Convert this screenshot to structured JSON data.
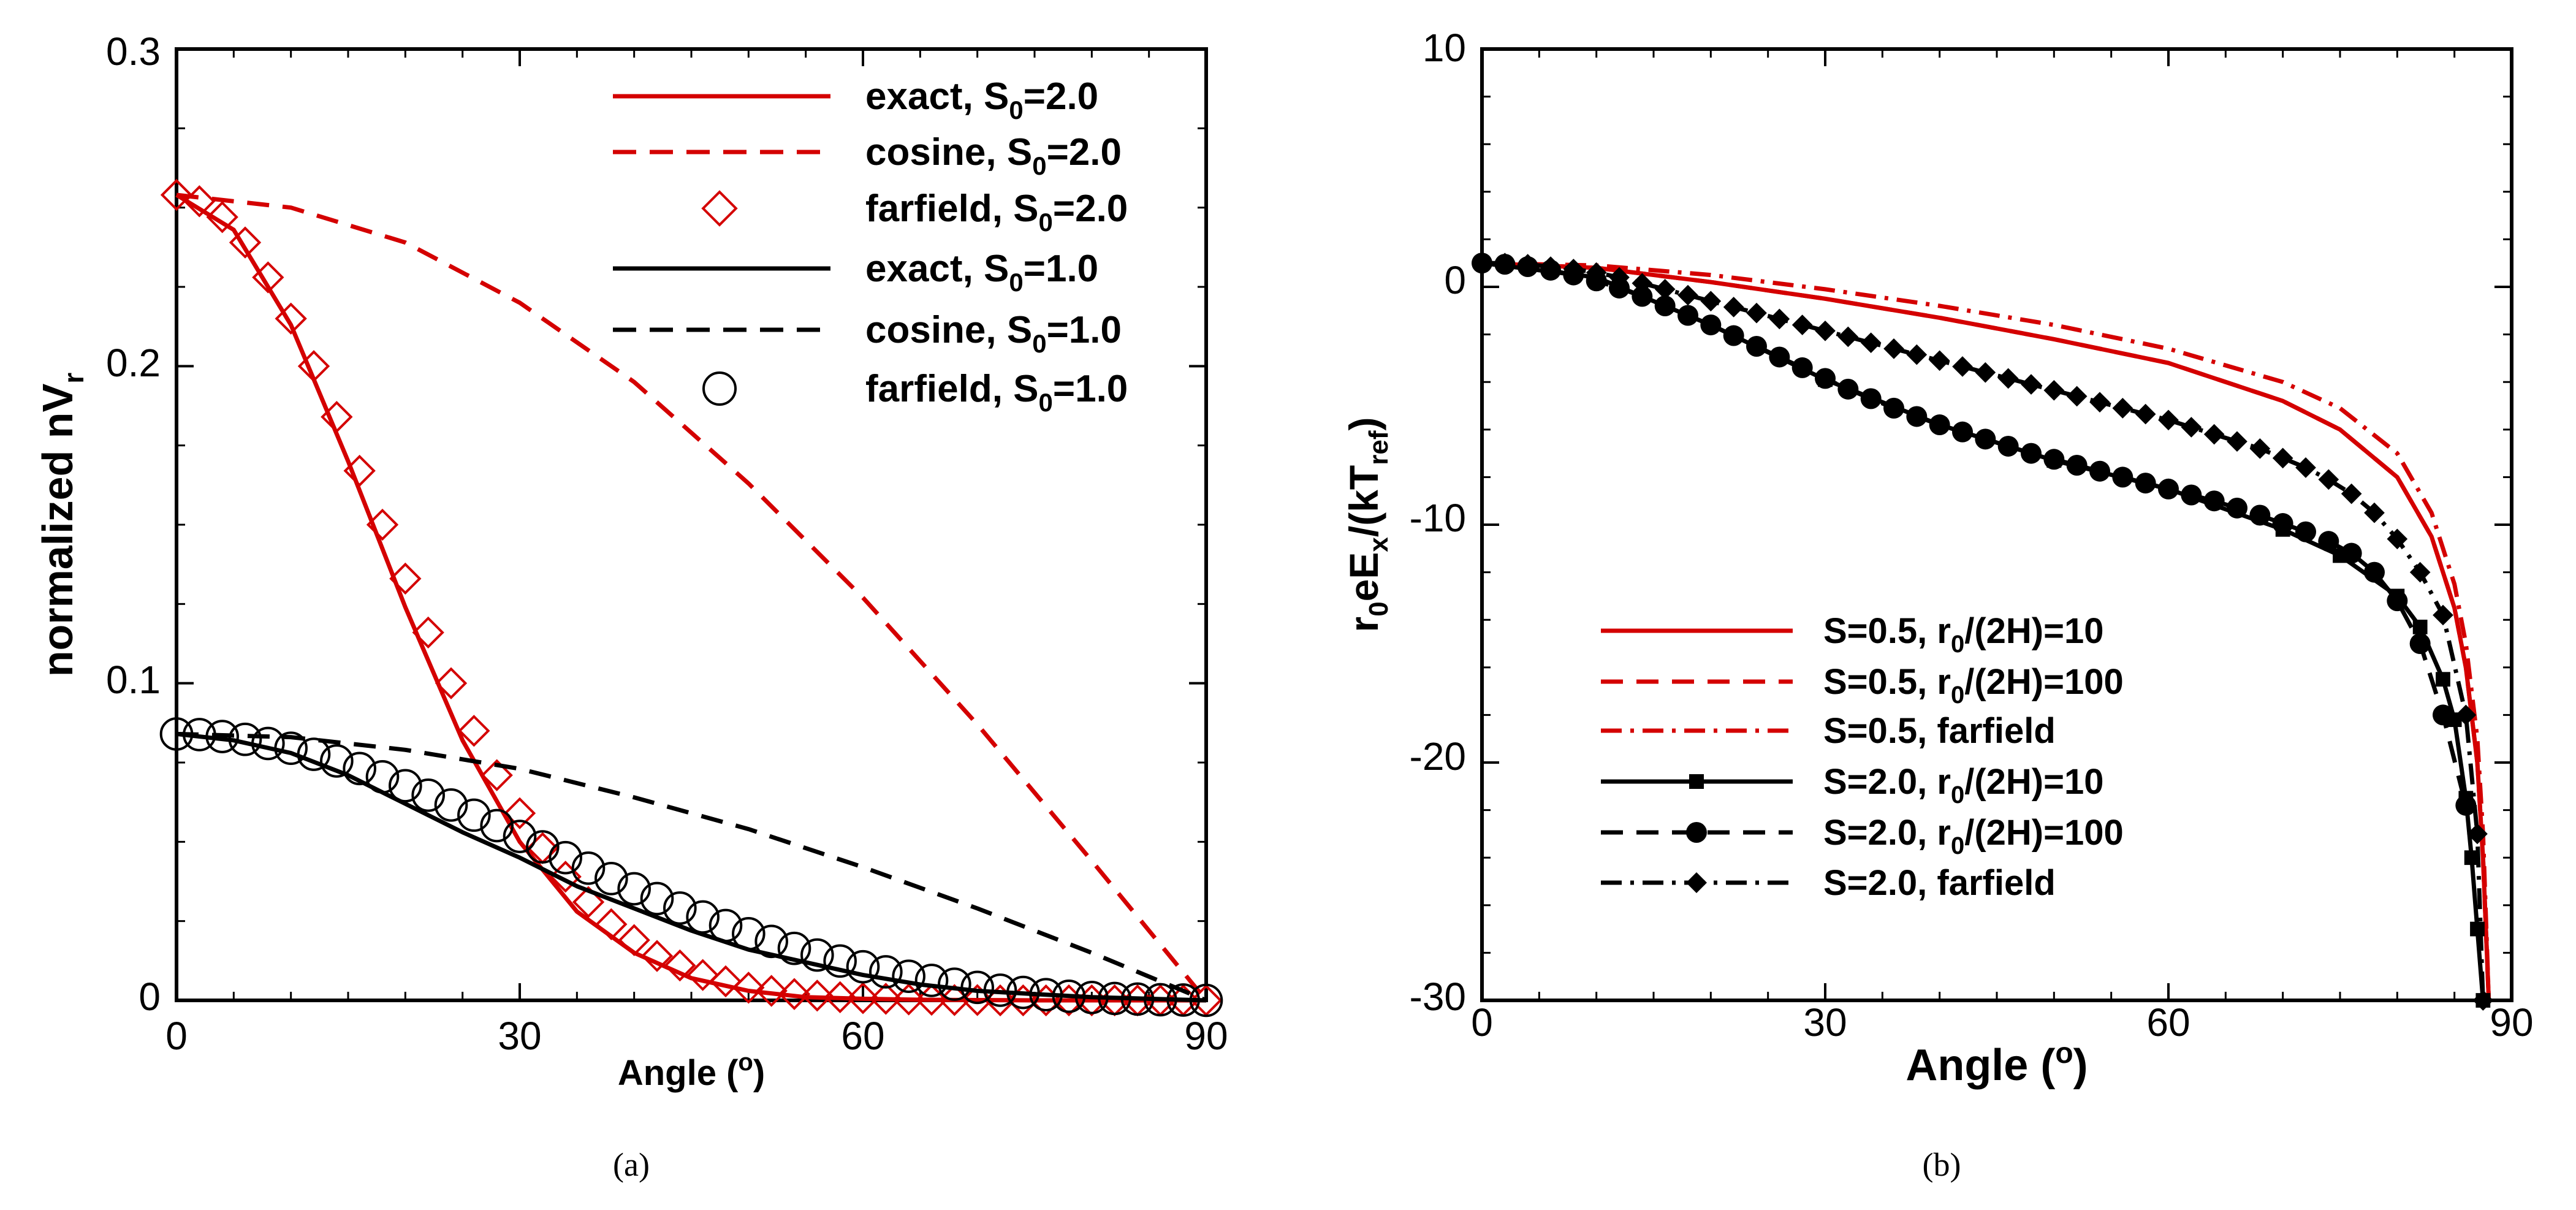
{
  "colors": {
    "red": "#d40000",
    "black": "#000000"
  },
  "chart_data": [
    {
      "id": "a",
      "type": "line",
      "caption": "(a)",
      "xlabel": "Angle (",
      "xlabel_sup": "o",
      "xlabel_end": ")",
      "ylabel": "normalized  nV",
      "ylabel_sub": "r",
      "xlim": [
        0,
        90
      ],
      "ylim": [
        0,
        0.3
      ],
      "xticks": [
        0,
        30,
        60,
        90
      ],
      "xtick_labels": [
        "0",
        "30",
        "60",
        "90"
      ],
      "yticks": [
        0,
        0.1,
        0.2,
        0.3
      ],
      "ytick_labels": [
        "0",
        "0.1",
        "0.2",
        "0.3"
      ],
      "legend_position": "top-right",
      "series": [
        {
          "name": "exact, S",
          "sub": "0",
          "suffix": "=2.0",
          "color": "#d40000",
          "dash": "solid",
          "marker": "none",
          "x": [
            0,
            5,
            10,
            15,
            20,
            25,
            30,
            35,
            40,
            45,
            50,
            55,
            60,
            65,
            70,
            75,
            80,
            85,
            90
          ],
          "y": [
            0.254,
            0.243,
            0.213,
            0.17,
            0.124,
            0.082,
            0.05,
            0.028,
            0.015,
            0.007,
            0.003,
            0.001,
            0.0005,
            0.0002,
            0.0001,
            0.0,
            0.0,
            0.0,
            0.0
          ]
        },
        {
          "name": "cosine, S",
          "sub": "0",
          "suffix": "=2.0",
          "color": "#d40000",
          "dash": "dashed",
          "marker": "none",
          "x": [
            0,
            10,
            20,
            30,
            40,
            50,
            60,
            70,
            80,
            90
          ],
          "y": [
            0.254,
            0.25,
            0.239,
            0.22,
            0.195,
            0.163,
            0.127,
            0.087,
            0.044,
            0.0
          ]
        },
        {
          "name": "farfield, S",
          "sub": "0",
          "suffix": "=2.0",
          "color": "#d40000",
          "dash": "none",
          "marker": "diamond",
          "x": [
            0,
            2,
            4,
            6,
            8,
            10,
            12,
            14,
            16,
            18,
            20,
            22,
            24,
            26,
            28,
            30,
            32,
            34,
            36,
            38,
            40,
            42,
            44,
            46,
            48,
            50,
            52,
            54,
            56,
            58,
            60,
            62,
            64,
            66,
            68,
            70,
            72,
            74,
            76,
            78,
            80,
            82,
            84,
            86,
            88,
            90
          ],
          "y": [
            0.254,
            0.252,
            0.247,
            0.239,
            0.228,
            0.215,
            0.2,
            0.184,
            0.167,
            0.15,
            0.133,
            0.116,
            0.1,
            0.085,
            0.071,
            0.059,
            0.048,
            0.039,
            0.031,
            0.024,
            0.019,
            0.014,
            0.011,
            0.008,
            0.006,
            0.004,
            0.003,
            0.002,
            0.0015,
            0.001,
            0.0007,
            0.0005,
            0.0003,
            0.0002,
            0.0001,
            0.0001,
            0.0,
            0.0,
            0.0,
            0.0,
            0.0,
            0.0,
            0.0,
            0.0,
            0.0,
            0.0
          ]
        },
        {
          "name": "exact, S",
          "sub": "0",
          "suffix": "=1.0",
          "color": "#000000",
          "dash": "solid",
          "marker": "none",
          "x": [
            0,
            5,
            10,
            15,
            20,
            25,
            30,
            35,
            40,
            45,
            50,
            55,
            60,
            65,
            70,
            75,
            80,
            85,
            90
          ],
          "y": [
            0.084,
            0.082,
            0.078,
            0.071,
            0.062,
            0.053,
            0.045,
            0.036,
            0.029,
            0.022,
            0.016,
            0.012,
            0.008,
            0.005,
            0.003,
            0.002,
            0.001,
            0.0005,
            0.0
          ]
        },
        {
          "name": "cosine, S",
          "sub": "0",
          "suffix": "=1.0",
          "color": "#000000",
          "dash": "dashed",
          "marker": "none",
          "x": [
            0,
            10,
            20,
            30,
            40,
            50,
            60,
            70,
            80,
            90
          ],
          "y": [
            0.084,
            0.083,
            0.079,
            0.073,
            0.064,
            0.054,
            0.042,
            0.029,
            0.015,
            0.0
          ]
        },
        {
          "name": "farfield, S",
          "sub": "0",
          "suffix": "=1.0",
          "color": "#000000",
          "dash": "none",
          "marker": "circle",
          "x": [
            0,
            2,
            4,
            6,
            8,
            10,
            12,
            14,
            16,
            18,
            20,
            22,
            24,
            26,
            28,
            30,
            32,
            34,
            36,
            38,
            40,
            42,
            44,
            46,
            48,
            50,
            52,
            54,
            56,
            58,
            60,
            62,
            64,
            66,
            68,
            70,
            72,
            74,
            76,
            78,
            80,
            82,
            84,
            86,
            88,
            90
          ],
          "y": [
            0.084,
            0.0838,
            0.0832,
            0.0823,
            0.081,
            0.0795,
            0.0776,
            0.0755,
            0.0731,
            0.0705,
            0.0677,
            0.0647,
            0.0616,
            0.0584,
            0.0551,
            0.0517,
            0.0484,
            0.045,
            0.0417,
            0.0384,
            0.0352,
            0.0321,
            0.0291,
            0.0263,
            0.0236,
            0.021,
            0.0186,
            0.0164,
            0.0143,
            0.0124,
            0.0106,
            0.009,
            0.0076,
            0.0063,
            0.0051,
            0.0041,
            0.0032,
            0.0025,
            0.0018,
            0.0013,
            0.0009,
            0.0006,
            0.0004,
            0.0002,
            0.0001,
            0.0
          ]
        }
      ]
    },
    {
      "id": "b",
      "type": "line",
      "caption": "(b)",
      "xlabel": "Angle (",
      "xlabel_sup": "o",
      "xlabel_end": ")",
      "ylabel_parts": [
        "r",
        "0",
        "eE",
        "x",
        "/(kT",
        "ref",
        ")"
      ],
      "xlim": [
        0,
        90
      ],
      "ylim": [
        -30,
        10
      ],
      "xticks": [
        0,
        30,
        60,
        90
      ],
      "xtick_labels": [
        "0",
        "30",
        "60",
        "90"
      ],
      "yticks": [
        -30,
        -20,
        -10,
        0,
        10
      ],
      "ytick_labels": [
        "-30",
        "-20",
        "-10",
        "0",
        "10"
      ],
      "legend_position": "bottom-left",
      "series": [
        {
          "label": "S=0.5,  r",
          "sub": "0",
          "suffix": "/(2H)=10",
          "color": "#d40000",
          "dash": "solid",
          "marker": "none",
          "x": [
            0,
            10,
            20,
            30,
            40,
            50,
            60,
            70,
            75,
            80,
            83,
            85,
            86,
            87,
            87.5,
            88
          ],
          "y": [
            1.0,
            0.8,
            0.2,
            -0.5,
            -1.3,
            -2.2,
            -3.2,
            -4.8,
            -6.0,
            -8.0,
            -10.5,
            -13.5,
            -16.0,
            -20.0,
            -24.0,
            -30.0
          ]
        },
        {
          "label": "S=0.5,  r",
          "sub": "0",
          "suffix": "/(2H)=100",
          "color": "#d40000",
          "dash": "dashed",
          "marker": "none",
          "x": [
            0,
            10,
            20,
            30,
            40,
            50,
            60,
            70,
            75,
            80,
            83,
            85,
            86,
            87,
            87.5,
            88
          ],
          "y": [
            1.0,
            0.8,
            0.2,
            -0.5,
            -1.3,
            -2.2,
            -3.2,
            -4.8,
            -6.0,
            -8.0,
            -10.5,
            -13.5,
            -16.0,
            -20.0,
            -24.0,
            -30.0
          ]
        },
        {
          "label": "S=0.5,  farfield",
          "sub": "",
          "suffix": "",
          "color": "#d40000",
          "dash": "dashdot",
          "marker": "none",
          "x": [
            0,
            10,
            20,
            30,
            40,
            50,
            60,
            70,
            75,
            80,
            83,
            85,
            86,
            87,
            87.5,
            88
          ],
          "y": [
            1.0,
            0.9,
            0.5,
            -0.1,
            -0.8,
            -1.6,
            -2.6,
            -4.0,
            -5.1,
            -7.0,
            -9.5,
            -12.5,
            -15.0,
            -19.0,
            -23.0,
            -30.0
          ]
        },
        {
          "label": "S=2.0,  r",
          "sub": "0",
          "suffix": "/(2H)=10",
          "color": "#000000",
          "dash": "solid",
          "marker": "square",
          "x": [
            0,
            10,
            20,
            30,
            40,
            50,
            60,
            70,
            75,
            80,
            82,
            84,
            85,
            86,
            86.5,
            87,
            87.5
          ],
          "y": [
            1.0,
            0.4,
            -1.6,
            -3.9,
            -5.8,
            -7.3,
            -8.5,
            -10.2,
            -11.3,
            -13.0,
            -14.3,
            -16.5,
            -18.2,
            -21.5,
            -24.0,
            -27.0,
            -30.0
          ]
        },
        {
          "label": "S=2.0, r",
          "sub": "0",
          "suffix": "/(2H)=100",
          "color": "#000000",
          "dash": "dashed",
          "marker": "circle",
          "x": [
            0,
            2,
            4,
            6,
            8,
            10,
            12,
            14,
            16,
            18,
            20,
            22,
            24,
            26,
            28,
            30,
            32,
            34,
            36,
            38,
            40,
            42,
            44,
            46,
            48,
            50,
            52,
            54,
            56,
            58,
            60,
            62,
            64,
            66,
            68,
            70,
            72,
            74,
            76,
            78,
            80,
            82,
            84,
            86
          ],
          "y": [
            1.0,
            0.95,
            0.85,
            0.7,
            0.5,
            0.25,
            -0.05,
            -0.4,
            -0.8,
            -1.2,
            -1.6,
            -2.05,
            -2.5,
            -2.95,
            -3.4,
            -3.85,
            -4.3,
            -4.7,
            -5.1,
            -5.45,
            -5.8,
            -6.1,
            -6.4,
            -6.7,
            -7.0,
            -7.25,
            -7.5,
            -7.75,
            -8.0,
            -8.25,
            -8.5,
            -8.75,
            -9.0,
            -9.3,
            -9.6,
            -9.95,
            -10.3,
            -10.7,
            -11.2,
            -12.0,
            -13.2,
            -15.0,
            -18.0,
            -21.8
          ]
        },
        {
          "label": "S=2.0, farfield",
          "sub": "",
          "suffix": "",
          "color": "#000000",
          "dash": "dashdot",
          "marker": "diamondfill",
          "x": [
            0,
            2,
            4,
            6,
            8,
            10,
            12,
            14,
            16,
            18,
            20,
            22,
            24,
            26,
            28,
            30,
            32,
            34,
            36,
            38,
            40,
            42,
            44,
            46,
            48,
            50,
            52,
            54,
            56,
            58,
            60,
            62,
            64,
            66,
            68,
            70,
            72,
            74,
            76,
            78,
            80,
            82,
            84,
            86,
            87,
            87.5
          ],
          "y": [
            1.0,
            1.0,
            0.95,
            0.85,
            0.75,
            0.6,
            0.4,
            0.15,
            -0.1,
            -0.35,
            -0.6,
            -0.85,
            -1.1,
            -1.35,
            -1.6,
            -1.85,
            -2.1,
            -2.35,
            -2.6,
            -2.85,
            -3.1,
            -3.35,
            -3.6,
            -3.85,
            -4.1,
            -4.35,
            -4.6,
            -4.85,
            -5.1,
            -5.35,
            -5.6,
            -5.9,
            -6.2,
            -6.5,
            -6.8,
            -7.2,
            -7.6,
            -8.1,
            -8.7,
            -9.5,
            -10.6,
            -12.0,
            -13.8,
            -18.0,
            -23.0,
            -30.0
          ]
        }
      ]
    }
  ]
}
